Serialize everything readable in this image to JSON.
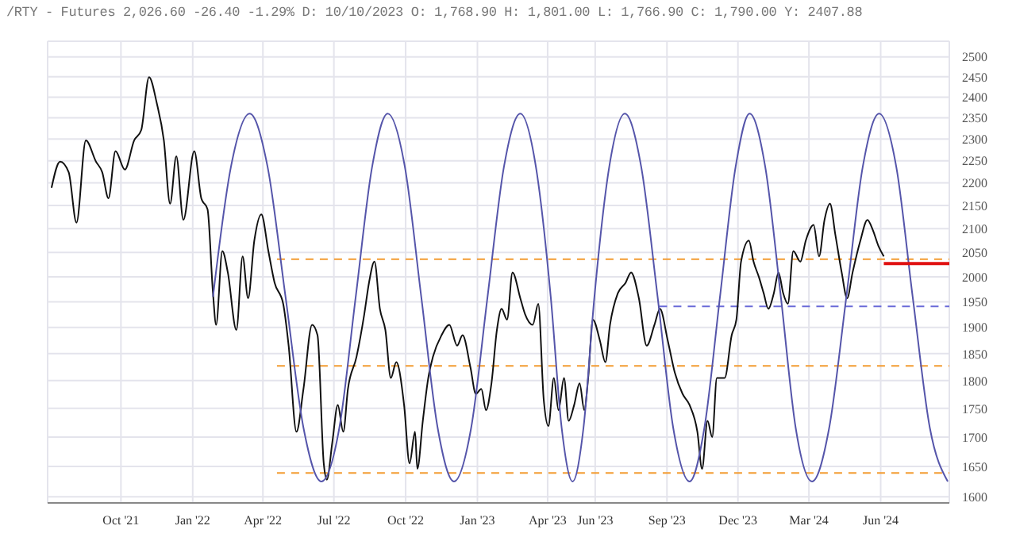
{
  "chart_data": {
    "type": "line",
    "title": "/RTY - Futures 2,026.60 -26.40 -1.29% D: 10/10/2023 O: 1,768.90 H: 1,801.00 L: 1,766.90 C: 1,790.00 Y: 2407.88",
    "log": "y",
    "grid": true,
    "xlim": [
      "2021-06-29",
      "2024-08-28"
    ],
    "xticks": [
      {
        "value": "2021-10-01",
        "label": "Oct '21"
      },
      {
        "value": "2022-01-01",
        "label": "Jan '22"
      },
      {
        "value": "2022-04-01",
        "label": "Apr '22"
      },
      {
        "value": "2022-07-01",
        "label": "Jul '22"
      },
      {
        "value": "2022-10-01",
        "label": "Oct '22"
      },
      {
        "value": "2023-01-01",
        "label": "Jan '23"
      },
      {
        "value": "2023-04-01",
        "label": "Apr '23"
      },
      {
        "value": "2023-06-01",
        "label": "Jun '23"
      },
      {
        "value": "2023-09-01",
        "label": "Sep '23"
      },
      {
        "value": "2023-12-01",
        "label": "Dec '23"
      },
      {
        "value": "2024-03-01",
        "label": "Mar '24"
      },
      {
        "value": "2024-06-01",
        "label": "Jun '24"
      }
    ],
    "ylim": [
      1590,
      2540
    ],
    "yticks": [
      1600,
      1650,
      1700,
      1750,
      1800,
      1850,
      1900,
      1950,
      2000,
      2050,
      2100,
      2150,
      2200,
      2250,
      2300,
      2350,
      2400,
      2450,
      2500
    ],
    "series": [
      {
        "color": "#f39c32",
        "line_style": "dashed",
        "x": [
          "2022-04-19",
          "2024-08-28"
        ],
        "values": [
          2036,
          2036
        ]
      },
      {
        "color": "#f39c32",
        "line_style": "dashed",
        "x": [
          "2022-04-19",
          "2024-08-28"
        ],
        "values": [
          1827,
          1827
        ]
      },
      {
        "color": "#f39c32",
        "line_style": "dashed",
        "x": [
          "2022-04-19",
          "2024-08-28"
        ],
        "values": [
          1639,
          1639
        ]
      },
      {
        "color": "#6a6ad8",
        "line_style": "dashed",
        "x": [
          "2023-08-22",
          "2024-08-28"
        ],
        "values": [
          1941,
          1941
        ]
      },
      {
        "color": "#111111",
        "x": [
          "2021-07-04",
          "2021-07-15",
          "2021-07-26",
          "2021-08-05",
          "2021-08-17",
          "2021-08-30",
          "2021-09-07",
          "2021-09-15",
          "2021-09-24",
          "2021-10-06",
          "2021-10-18",
          "2021-10-27",
          "2021-11-06",
          "2021-11-16",
          "2021-11-25",
          "2021-12-03",
          "2021-12-11",
          "2021-12-20",
          "2022-01-03",
          "2022-01-12",
          "2022-01-20",
          "2022-01-27",
          "2022-01-31",
          "2022-02-08",
          "2022-02-15",
          "2022-02-26",
          "2022-03-06",
          "2022-03-13",
          "2022-03-21",
          "2022-03-30",
          "2022-04-08",
          "2022-04-16",
          "2022-04-27",
          "2022-05-04",
          "2022-05-14",
          "2022-05-23",
          "2022-06-03",
          "2022-06-10",
          "2022-06-18",
          "2022-06-22",
          "2022-06-29",
          "2022-07-06",
          "2022-07-13",
          "2022-07-19",
          "2022-07-30",
          "2022-08-09",
          "2022-08-15",
          "2022-08-22",
          "2022-08-29",
          "2022-09-05",
          "2022-09-12",
          "2022-09-19",
          "2022-09-29",
          "2022-10-06",
          "2022-10-13",
          "2022-10-16",
          "2022-10-23",
          "2022-10-30",
          "2022-11-05",
          "2022-11-16",
          "2022-11-26",
          "2022-12-06",
          "2022-12-13",
          "2022-12-23",
          "2022-12-30",
          "2023-01-06",
          "2023-01-12",
          "2023-01-19",
          "2023-01-26",
          "2023-02-01",
          "2023-02-08",
          "2023-02-15",
          "2023-02-25",
          "2023-03-03",
          "2023-03-13",
          "2023-03-20",
          "2023-03-27",
          "2023-04-02",
          "2023-04-09",
          "2023-04-15",
          "2023-04-22",
          "2023-04-28",
          "2023-05-05",
          "2023-05-12",
          "2023-05-18",
          "2023-05-23",
          "2023-05-29",
          "2023-06-07",
          "2023-06-14",
          "2023-06-20",
          "2023-06-30",
          "2023-07-10",
          "2023-07-17",
          "2023-07-27",
          "2023-08-06",
          "2023-08-16",
          "2023-08-23",
          "2023-09-02",
          "2023-09-11",
          "2023-09-21",
          "2023-09-30",
          "2023-10-10",
          "2023-10-16",
          "2023-10-23",
          "2023-10-29",
          "2023-11-04",
          "2023-11-14",
          "2023-11-23",
          "2023-11-29",
          "2023-12-05",
          "2023-12-15",
          "2023-12-21",
          "2023-12-28",
          "2024-01-03",
          "2024-01-09",
          "2024-01-16",
          "2024-01-22",
          "2024-01-28",
          "2024-02-03",
          "2024-02-10",
          "2024-02-19",
          "2024-02-26",
          "2024-03-07",
          "2024-03-14",
          "2024-03-21",
          "2024-03-28",
          "2024-04-04",
          "2024-04-12",
          "2024-04-19",
          "2024-04-26",
          "2024-05-06",
          "2024-05-15",
          "2024-05-22",
          "2024-05-29",
          "2024-06-05"
        ],
        "values": [
          2189,
          2248,
          2224,
          2113,
          2297,
          2248,
          2224,
          2166,
          2272,
          2230,
          2297,
          2321,
          2449,
          2385,
          2297,
          2154,
          2260,
          2119,
          2272,
          2166,
          2142,
          1967,
          1905,
          2053,
          2009,
          1895,
          2042,
          1957,
          2075,
          2131,
          2053,
          1988,
          1946,
          1865,
          1709,
          1785,
          1905,
          1885,
          1655,
          1628,
          1691,
          1756,
          1709,
          1785,
          1844,
          1926,
          1988,
          2031,
          1936,
          1895,
          1805,
          1834,
          1756,
          1655,
          1709,
          1646,
          1728,
          1805,
          1844,
          1885,
          1905,
          1865,
          1885,
          1825,
          1776,
          1785,
          1747,
          1795,
          1895,
          1936,
          1915,
          2009,
          1957,
          1926,
          1905,
          1946,
          1766,
          1719,
          1805,
          1747,
          1805,
          1728,
          1756,
          1795,
          1747,
          1805,
          1915,
          1875,
          1834,
          1905,
          1967,
          1988,
          2009,
          1957,
          1865,
          1905,
          1936,
          1875,
          1815,
          1776,
          1756,
          1709,
          1646,
          1728,
          1700,
          1805,
          1805,
          1885,
          1915,
          2031,
          2075,
          2031,
          1999,
          1967,
          1936,
          1967,
          2009,
          1967,
          1946,
          2053,
          2031,
          2075,
          2108,
          2042,
          2119,
          2154,
          2086,
          2009,
          1957,
          2009,
          2075,
          2119,
          2097,
          2064,
          2042
        ]
      },
      {
        "color": "#5555aa",
        "x": [
          "2022-01-27",
          "2022-02-19",
          "2022-03-15",
          "2022-04-07",
          "2022-04-30",
          "2022-05-23",
          "2022-06-15",
          "2022-07-08",
          "2022-07-29",
          "2022-08-19",
          "2022-09-08",
          "2022-09-30",
          "2022-10-21",
          "2022-11-11",
          "2022-12-02",
          "2022-12-24",
          "2023-01-14",
          "2023-02-04",
          "2023-02-25",
          "2023-03-17",
          "2023-04-05",
          "2023-04-19",
          "2023-05-03",
          "2023-05-17",
          "2023-05-31",
          "2023-06-19",
          "2023-07-09",
          "2023-07-30",
          "2023-08-20",
          "2023-09-09",
          "2023-09-30",
          "2023-10-19",
          "2023-11-08",
          "2023-11-28",
          "2023-12-16",
          "2024-01-05",
          "2024-01-25",
          "2024-02-13",
          "2024-03-05",
          "2024-03-27",
          "2024-04-18",
          "2024-05-09",
          "2024-05-30",
          "2024-06-21",
          "2024-07-12",
          "2024-08-03",
          "2024-08-26"
        ],
        "values": [
          1960,
          2236,
          2360,
          2236,
          1960,
          1716,
          1625,
          1716,
          1960,
          2236,
          2360,
          2236,
          1960,
          1716,
          1625,
          1716,
          1960,
          2236,
          2360,
          2236,
          1960,
          1716,
          1625,
          1716,
          1960,
          2236,
          2360,
          2236,
          1960,
          1716,
          1625,
          1716,
          1960,
          2236,
          2360,
          2236,
          1960,
          1716,
          1625,
          1716,
          1960,
          2236,
          2360,
          2236,
          1960,
          1716,
          1625
        ]
      },
      {
        "color": "#e01010",
        "x": [
          "2024-06-05",
          "2024-08-28"
        ],
        "values": [
          2027,
          2027
        ]
      }
    ]
  }
}
